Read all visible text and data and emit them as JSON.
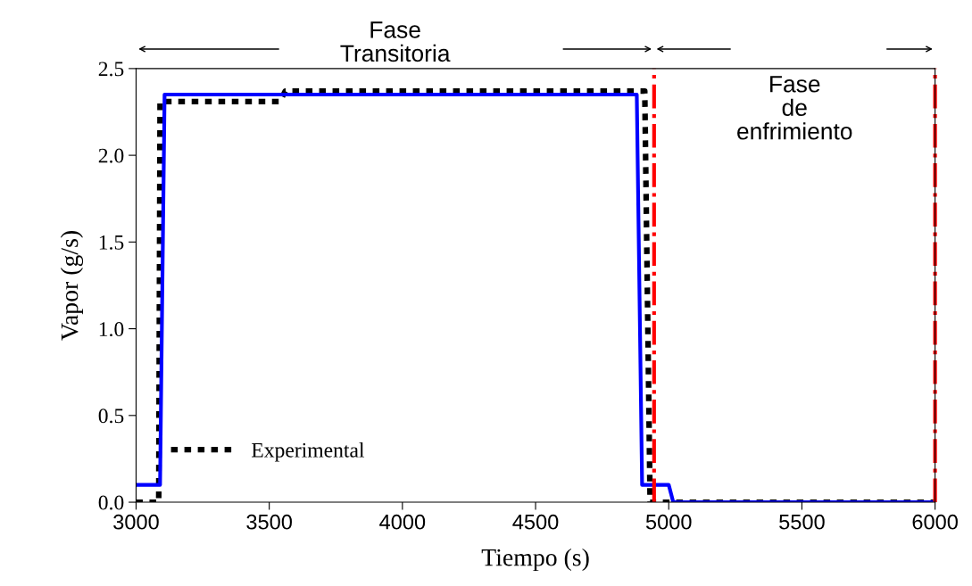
{
  "chart_data": {
    "type": "line",
    "xlabel": "Tiempo (s)",
    "ylabel": "Vapor (g/s)",
    "xlim": [
      3000,
      6000
    ],
    "xticks": [
      3000,
      3500,
      4000,
      4500,
      5000,
      5500,
      6000
    ],
    "ylim": [
      0,
      2.5
    ],
    "yticks": [
      {
        "value": 0,
        "label": "0.0"
      },
      0.5,
      {
        "value": 1,
        "label": "1.0"
      },
      1.5,
      {
        "value": 2,
        "label": "2.0"
      },
      2.5
    ],
    "series": [
      {
        "name": "Experimental",
        "color": "#000000",
        "line_style": "dotted",
        "x": [
          3000,
          3085,
          3090,
          3540,
          3560,
          4910,
          4930,
          6000
        ],
        "values": [
          0,
          0,
          2.31,
          2.31,
          2.37,
          2.37,
          0,
          0
        ]
      },
      {
        "color": "#0000ff",
        "line_style": "solid",
        "x": [
          3000,
          3090,
          3107,
          4880,
          4900,
          5000,
          5017,
          6000
        ],
        "values": [
          0.1,
          0.1,
          2.35,
          2.35,
          0.1,
          0.1,
          0,
          0
        ]
      }
    ],
    "ref_lines": [
      {
        "axis": "x",
        "value": 4945,
        "color": "#ff0000",
        "line_style": "dashdot"
      },
      {
        "axis": "x",
        "value": 6000,
        "color": "#ff0000",
        "line_style": "dashdot"
      }
    ],
    "annotations": [
      "Fase\nTransitoria",
      "Fase\nde\nenfrimiento"
    ],
    "legend": "bottom left",
    "grid": false
  }
}
